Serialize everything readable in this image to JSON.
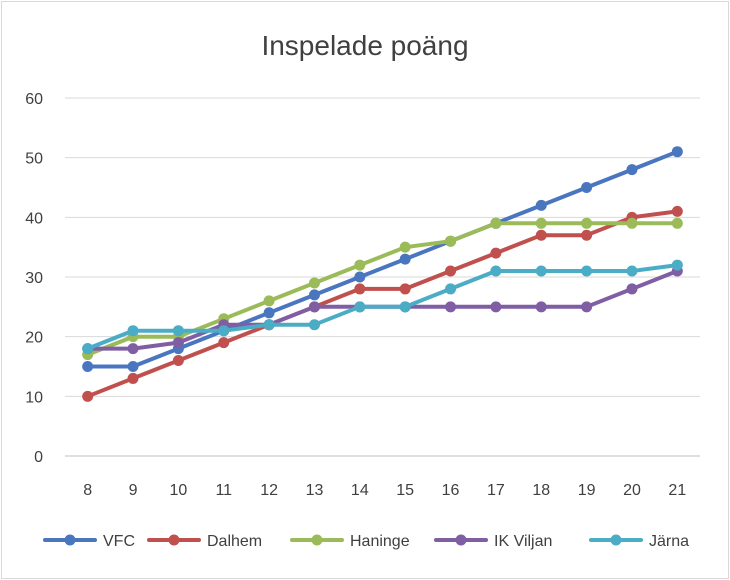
{
  "chart_data": {
    "type": "line",
    "title": "Inspelade poäng",
    "xlabel": "",
    "ylabel": "",
    "categories": [
      "8",
      "9",
      "10",
      "11",
      "12",
      "13",
      "14",
      "15",
      "16",
      "17",
      "18",
      "19",
      "20",
      "21"
    ],
    "ylim": [
      0,
      60
    ],
    "yticks": [
      0,
      10,
      20,
      30,
      40,
      50,
      60
    ],
    "grid": true,
    "legend_position": "bottom",
    "series": [
      {
        "name": "VFC",
        "color": "#4a76c0",
        "values": [
          15,
          15,
          18,
          21,
          24,
          27,
          30,
          33,
          36,
          39,
          42,
          45,
          48,
          51
        ]
      },
      {
        "name": "Dalhem",
        "color": "#c0504d",
        "values": [
          10,
          13,
          16,
          19,
          22,
          25,
          28,
          28,
          31,
          34,
          37,
          37,
          40,
          41
        ]
      },
      {
        "name": "Haninge",
        "color": "#9bbb59",
        "values": [
          17,
          20,
          20,
          23,
          26,
          29,
          32,
          35,
          36,
          39,
          39,
          39,
          39,
          39
        ]
      },
      {
        "name": "IK Viljan",
        "color": "#7f5ea3",
        "values": [
          18,
          18,
          19,
          22,
          22,
          25,
          25,
          25,
          25,
          25,
          25,
          25,
          28,
          31
        ]
      },
      {
        "name": "Järna",
        "color": "#4bacc6",
        "values": [
          18,
          21,
          21,
          21,
          22,
          22,
          25,
          25,
          28,
          31,
          31,
          31,
          31,
          32
        ]
      }
    ]
  }
}
